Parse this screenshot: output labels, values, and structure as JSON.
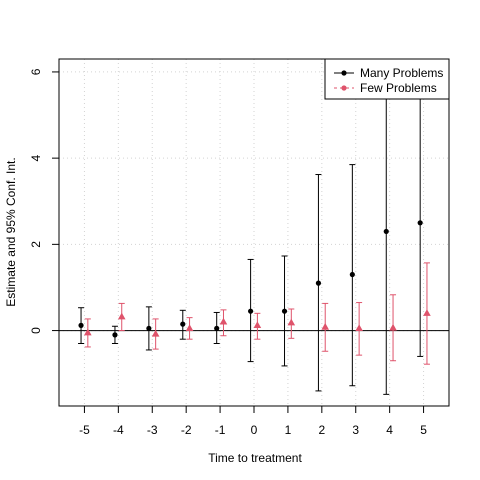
{
  "chart_data": {
    "type": "scatter",
    "xlabel": "Time to treatment",
    "ylabel": "Estimate and 95% Conf. Int.",
    "xlim": [
      -5.75,
      5.75
    ],
    "ylim": [
      -1.75,
      6.3
    ],
    "x_ticks": [
      -5,
      -4,
      -3,
      -2,
      -1,
      0,
      1,
      2,
      3,
      4,
      5
    ],
    "y_ticks": [
      0,
      2,
      4,
      6
    ],
    "grid": true,
    "zero_line": 0,
    "legend_position": "top-right",
    "series": [
      {
        "name": "Many Problems",
        "color": "#000000",
        "marker": "circle",
        "offset": -0.1,
        "x": [
          -5,
          -4,
          -3,
          -2,
          -1,
          0,
          1,
          2,
          3,
          4,
          5
        ],
        "y": [
          0.12,
          -0.1,
          0.05,
          0.15,
          0.05,
          0.45,
          0.45,
          1.1,
          1.3,
          2.3,
          2.5
        ],
        "lower": [
          -0.3,
          -0.3,
          -0.45,
          -0.2,
          -0.3,
          -0.72,
          -0.82,
          -1.4,
          -1.28,
          -1.48,
          -0.6
        ],
        "upper": [
          0.53,
          0.1,
          0.55,
          0.47,
          0.42,
          1.65,
          1.73,
          3.62,
          3.85,
          6.3,
          6.3
        ]
      },
      {
        "name": "Few Problems",
        "color": "#DF536B",
        "marker": "triangle",
        "offset": 0.1,
        "x": [
          -5,
          -4,
          -3,
          -2,
          -1,
          0,
          1,
          2,
          3,
          4,
          5
        ],
        "y": [
          -0.05,
          0.32,
          -0.08,
          0.05,
          0.2,
          0.12,
          0.18,
          0.08,
          0.05,
          0.06,
          0.4
        ],
        "lower": [
          -0.38,
          0.0,
          -0.43,
          -0.2,
          -0.12,
          -0.2,
          -0.18,
          -0.48,
          -0.57,
          -0.7,
          -0.78
        ],
        "upper": [
          0.27,
          0.63,
          0.27,
          0.3,
          0.48,
          0.4,
          0.5,
          0.63,
          0.65,
          0.83,
          1.57
        ]
      }
    ]
  }
}
